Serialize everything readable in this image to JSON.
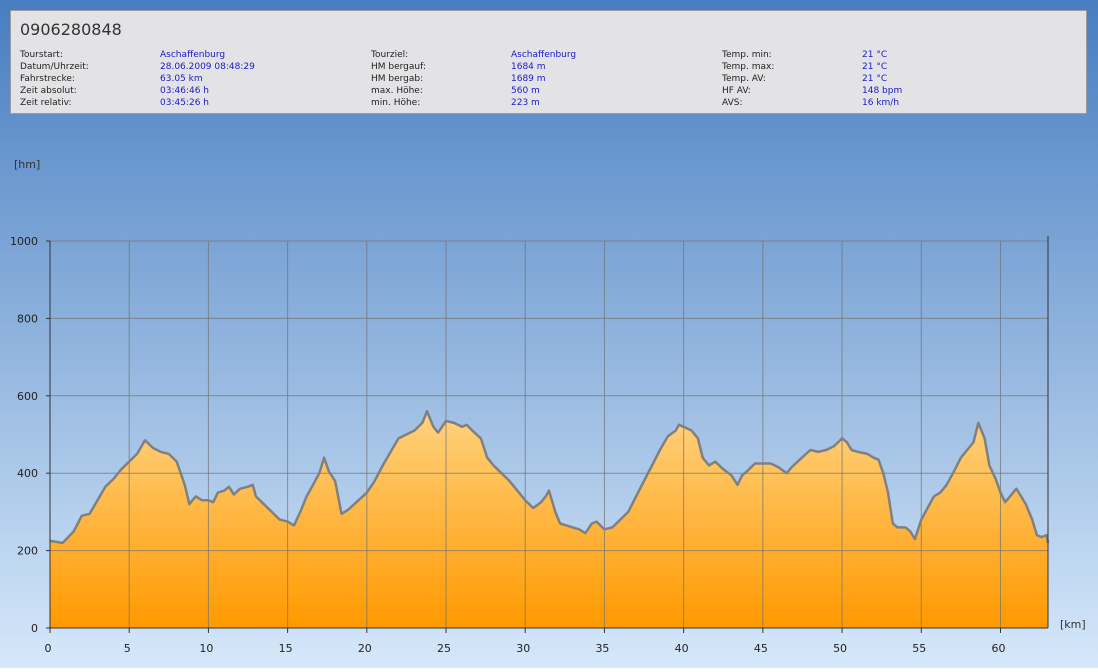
{
  "header": {
    "title": "0906280848",
    "fields": [
      {
        "label": "Tourstart:",
        "value": "Aschaffenburg"
      },
      {
        "label": "Datum/Uhrzeit:",
        "value": "28.06.2009 08:48:29"
      },
      {
        "label": "Fahrstrecke:",
        "value": "63.05 km"
      },
      {
        "label": "Zeit absolut:",
        "value": "03:46:46 h"
      },
      {
        "label": "Zeit relativ:",
        "value": "03:45:26 h"
      },
      {
        "label": "Tourziel:",
        "value": "Aschaffenburg"
      },
      {
        "label": "HM bergauf:",
        "value": "1684 m"
      },
      {
        "label": "HM bergab:",
        "value": "1689 m"
      },
      {
        "label": "max. Höhe:",
        "value": "560 m"
      },
      {
        "label": "min. Höhe:",
        "value": "223 m"
      },
      {
        "label": "Temp. min:",
        "value": "21 °C"
      },
      {
        "label": "Temp. max:",
        "value": "21 °C"
      },
      {
        "label": "Temp. AV:",
        "value": "21 °C"
      },
      {
        "label": "HF AV:",
        "value": "148 bpm"
      },
      {
        "label": "AVS:",
        "value": "16 km/h"
      }
    ]
  },
  "chart_data": {
    "type": "area",
    "y_label": "[hm]",
    "x_label": "[km]",
    "xlim": [
      0,
      63
    ],
    "xticks": [
      0,
      5,
      10,
      15,
      20,
      25,
      30,
      35,
      40,
      45,
      50,
      55,
      60
    ],
    "ylim": [
      0,
      1000
    ],
    "yticks": [
      0,
      200,
      400,
      600,
      800,
      1000
    ],
    "grid": true,
    "line_color": "#808080",
    "fill_top": "#ffd27f",
    "fill_bottom": "#ff9900",
    "x": [
      0,
      0.8,
      1.5,
      2,
      2.5,
      3,
      3.5,
      4,
      4.5,
      5,
      5.5,
      6,
      6.5,
      7,
      7.5,
      8,
      8.5,
      8.8,
      9.2,
      9.6,
      10,
      10.3,
      10.6,
      11,
      11.3,
      11.6,
      12,
      12.5,
      12.8,
      13,
      13.5,
      14,
      14.5,
      15,
      15.4,
      15.8,
      16.2,
      16.6,
      17,
      17.3,
      17.6,
      18,
      18.4,
      18.8,
      19.2,
      19.6,
      20,
      20.5,
      21,
      21.5,
      22,
      22.5,
      23,
      23.5,
      23.8,
      24.2,
      24.5,
      25,
      25.5,
      26,
      26.3,
      26.8,
      27.2,
      27.6,
      28,
      28.5,
      29,
      29.5,
      30,
      30.5,
      31,
      31.3,
      31.5,
      31.9,
      32.2,
      32.6,
      33,
      33.4,
      33.8,
      34.2,
      34.5,
      35,
      35.5,
      36,
      36.5,
      37,
      37.5,
      38,
      38.5,
      39,
      39.5,
      39.7,
      40,
      40.5,
      40.9,
      41.2,
      41.6,
      42,
      42.5,
      43,
      43.4,
      43.7,
      44,
      44.5,
      45,
      45.5,
      46,
      46.5,
      46.8,
      47.2,
      47.6,
      48,
      48.5,
      49,
      49.5,
      50,
      50.3,
      50.6,
      51,
      51.6,
      52,
      52.3,
      52.6,
      52.9,
      53.2,
      53.5,
      54,
      54.3,
      54.6,
      55,
      55.4,
      55.8,
      56.2,
      56.6,
      57,
      57.5,
      58,
      58.3,
      58.6,
      59,
      59.3,
      59.7,
      60,
      60.3,
      60.6,
      61,
      61.3,
      61.6,
      62,
      62.3,
      62.6,
      62.9,
      63
    ],
    "values": [
      225,
      220,
      250,
      290,
      295,
      330,
      365,
      385,
      410,
      430,
      450,
      485,
      465,
      455,
      450,
      430,
      370,
      320,
      340,
      330,
      330,
      325,
      350,
      355,
      365,
      345,
      360,
      365,
      370,
      340,
      320,
      300,
      280,
      275,
      265,
      300,
      340,
      370,
      400,
      440,
      405,
      380,
      295,
      305,
      320,
      335,
      350,
      380,
      420,
      455,
      490,
      500,
      510,
      530,
      560,
      520,
      505,
      535,
      530,
      520,
      525,
      505,
      490,
      440,
      420,
      400,
      380,
      355,
      330,
      310,
      325,
      340,
      355,
      300,
      270,
      265,
      260,
      255,
      245,
      270,
      275,
      255,
      260,
      280,
      300,
      340,
      380,
      420,
      460,
      495,
      510,
      525,
      520,
      510,
      490,
      440,
      420,
      430,
      410,
      395,
      370,
      395,
      405,
      425,
      425,
      425,
      415,
      400,
      415,
      430,
      445,
      460,
      455,
      460,
      470,
      490,
      480,
      460,
      455,
      450,
      440,
      435,
      400,
      350,
      270,
      260,
      260,
      250,
      230,
      280,
      310,
      340,
      350,
      370,
      400,
      440,
      465,
      480,
      530,
      490,
      420,
      385,
      350,
      325,
      340,
      360,
      340,
      320,
      280,
      240,
      235,
      240,
      220
    ]
  }
}
